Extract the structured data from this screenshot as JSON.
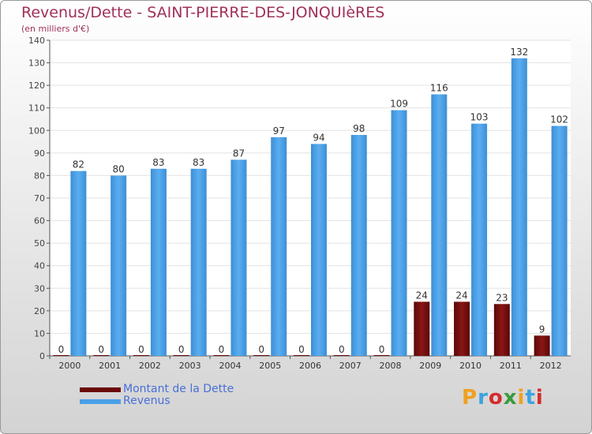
{
  "header": {
    "title": "Revenus/Dette - SAINT-PIERRE-DES-JONQUIèRES",
    "subtitle": "(en milliers d'€)"
  },
  "legend": {
    "items": [
      {
        "label": "Montant de la Dette",
        "color": "#6b0a0a"
      },
      {
        "label": "Revenus",
        "color": "#4aa0e6"
      }
    ]
  },
  "brand": {
    "letters": [
      "P",
      "r",
      "o",
      "x",
      "i",
      "t",
      "i"
    ],
    "colors": [
      "#f0a020",
      "#3aa3e0",
      "#d62b2b",
      "#3a9a3a",
      "#f0a020",
      "#3aa3e0",
      "#d62b2b"
    ]
  },
  "chart_data": {
    "type": "bar",
    "categories": [
      "2000",
      "2001",
      "2002",
      "2003",
      "2004",
      "2005",
      "2006",
      "2007",
      "2008",
      "2009",
      "2010",
      "2011",
      "2012"
    ],
    "series": [
      {
        "name": "Montant de la Dette",
        "values": [
          0,
          0,
          0,
          0,
          0,
          0,
          0,
          0,
          0,
          24,
          24,
          23,
          9
        ],
        "color": "#6b0a0a"
      },
      {
        "name": "Revenus",
        "values": [
          82,
          80,
          83,
          83,
          87,
          97,
          94,
          98,
          109,
          116,
          103,
          132,
          102
        ],
        "color": "#4aa0e6"
      }
    ],
    "ylim": [
      0,
      140
    ],
    "yticks": [
      0,
      10,
      20,
      30,
      40,
      50,
      60,
      70,
      80,
      90,
      100,
      110,
      120,
      130,
      140
    ],
    "grid": true,
    "legend_position": "bottom-left"
  }
}
